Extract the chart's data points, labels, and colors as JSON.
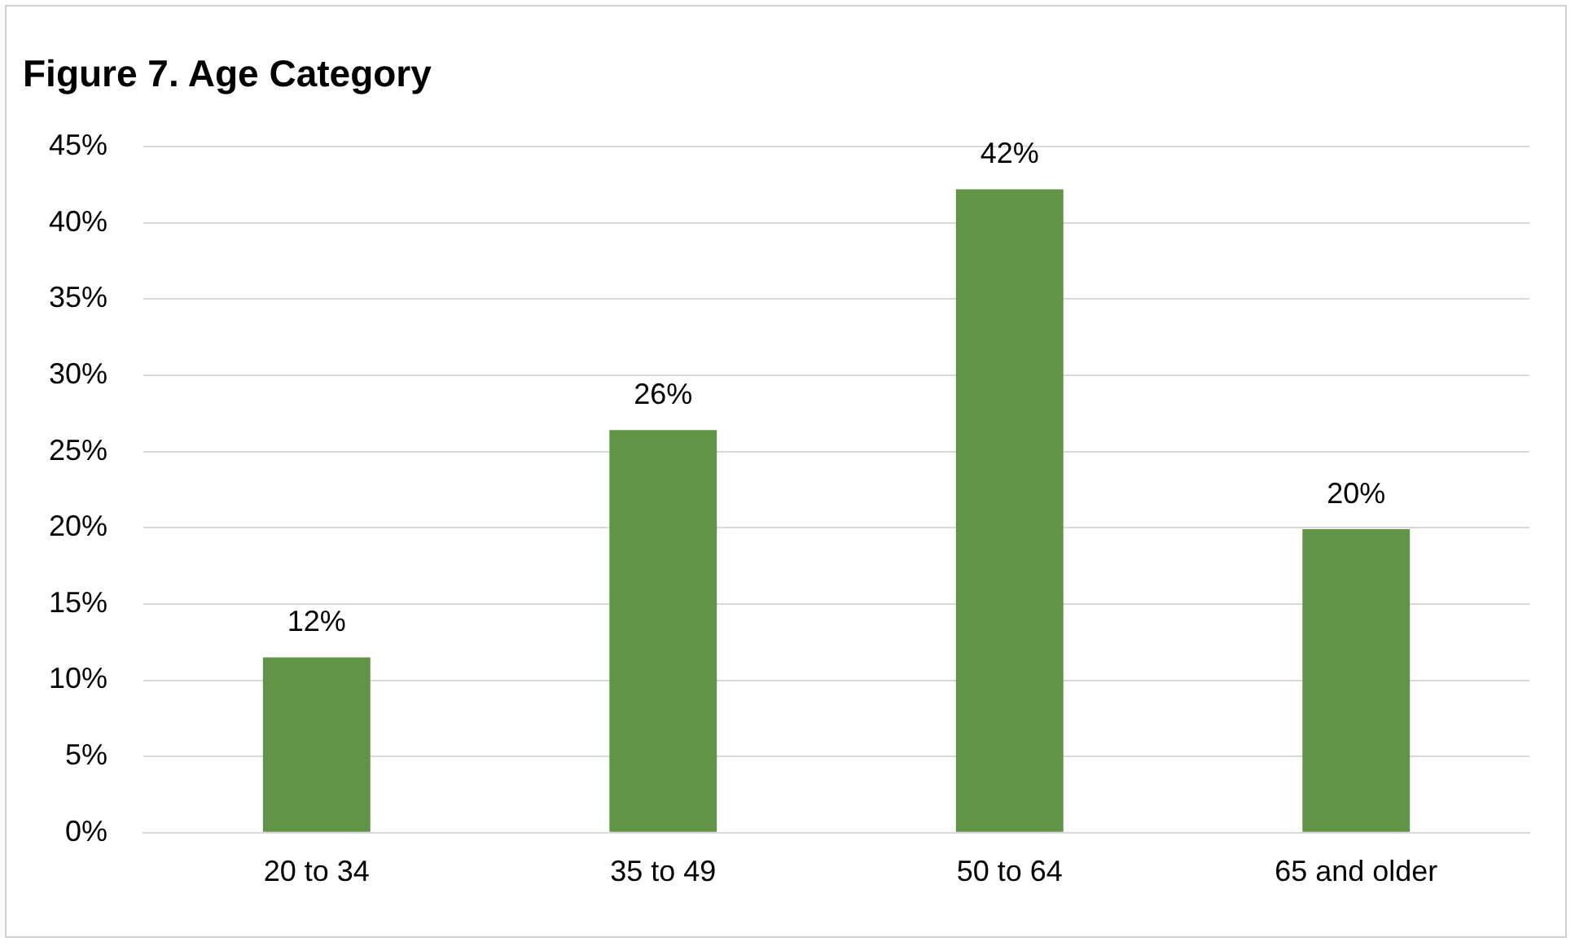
{
  "chart_data": {
    "type": "bar",
    "title": "Figure 7. Age Category",
    "categories": [
      "20 to 34",
      "35 to 49",
      "50 to 64",
      "65 and older"
    ],
    "values": [
      11.5,
      26.4,
      42.2,
      19.9
    ],
    "value_labels": [
      "12%",
      "26%",
      "42%",
      "20%"
    ],
    "color": "#629448",
    "ylim": [
      0,
      45
    ],
    "yticks": [
      {
        "value": 0,
        "label": "0%"
      },
      {
        "value": 5,
        "label": "5%"
      },
      {
        "value": 10,
        "label": "10%"
      },
      {
        "value": 15,
        "label": "15%"
      },
      {
        "value": 20,
        "label": "20%"
      },
      {
        "value": 25,
        "label": "25%"
      },
      {
        "value": 30,
        "label": "30%"
      },
      {
        "value": 35,
        "label": "35%"
      },
      {
        "value": 40,
        "label": "40%"
      },
      {
        "value": 45,
        "label": "45%"
      }
    ],
    "grid": "y",
    "legend": false
  }
}
